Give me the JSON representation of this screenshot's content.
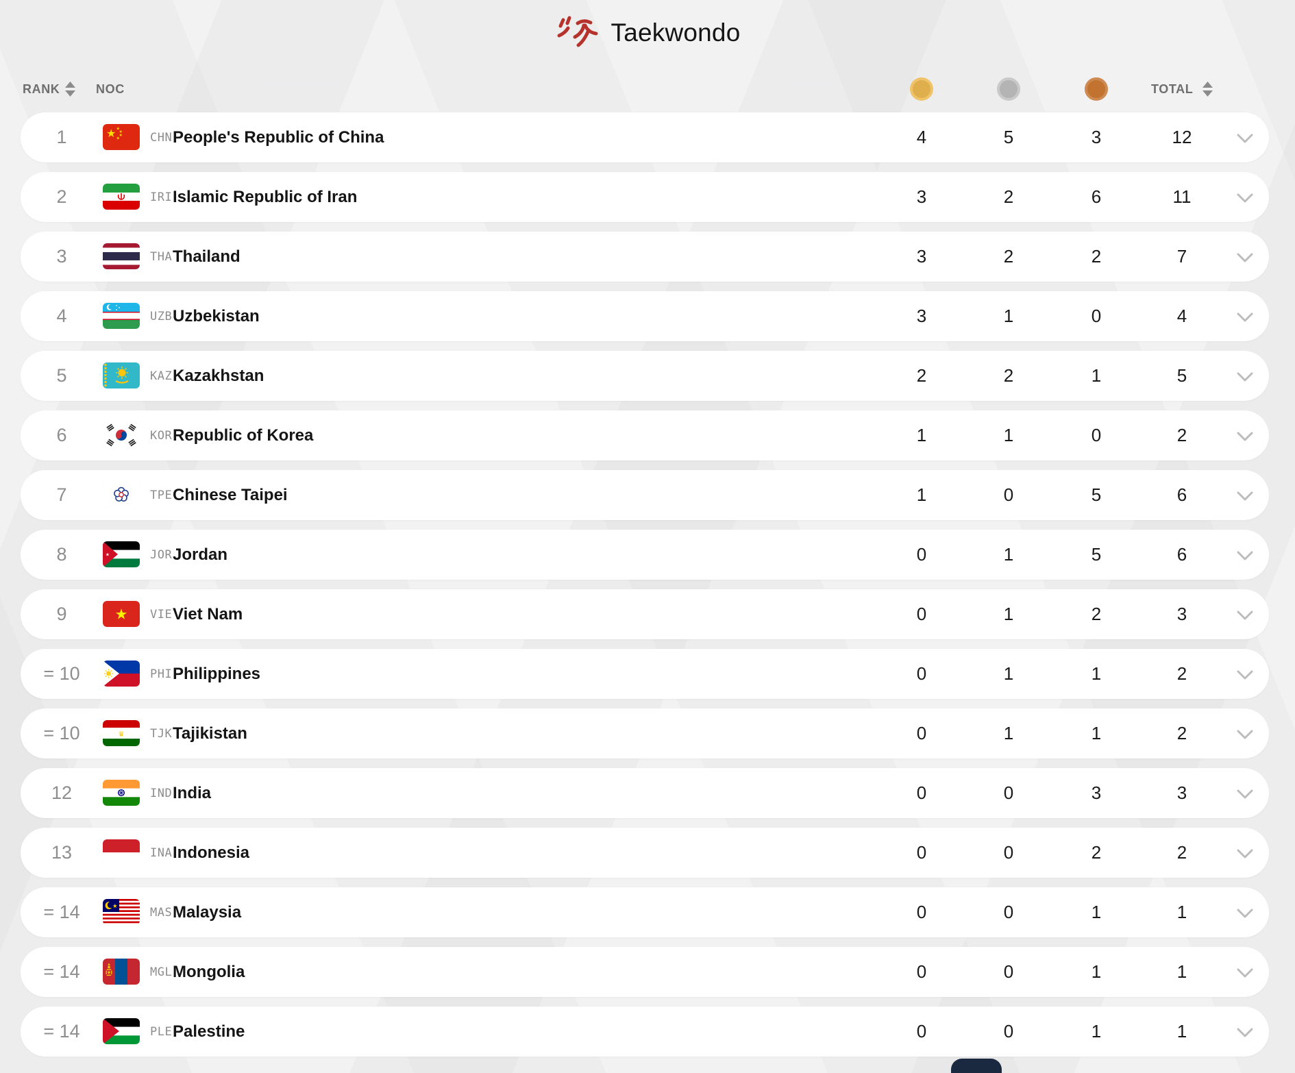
{
  "page": {
    "title": "Taekwondo",
    "accent_color": "#b5332c"
  },
  "table": {
    "headers": {
      "rank": "RANK",
      "noc": "NOC",
      "total": "TOTAL"
    },
    "medal_colors": {
      "gold": "#dfaf4e",
      "gold_ring": "#efc469",
      "silver": "#b4b4b4",
      "silver_ring": "#c9c9c9",
      "bronze": "#c2732f",
      "bronze_ring": "#ce8a50"
    },
    "rows": [
      {
        "rank": "1",
        "noc": "CHN",
        "country": "People's Republic of China",
        "gold": 4,
        "silver": 5,
        "bronze": 3,
        "total": 12
      },
      {
        "rank": "2",
        "noc": "IRI",
        "country": "Islamic Republic of Iran",
        "gold": 3,
        "silver": 2,
        "bronze": 6,
        "total": 11
      },
      {
        "rank": "3",
        "noc": "THA",
        "country": "Thailand",
        "gold": 3,
        "silver": 2,
        "bronze": 2,
        "total": 7
      },
      {
        "rank": "4",
        "noc": "UZB",
        "country": "Uzbekistan",
        "gold": 3,
        "silver": 1,
        "bronze": 0,
        "total": 4
      },
      {
        "rank": "5",
        "noc": "KAZ",
        "country": "Kazakhstan",
        "gold": 2,
        "silver": 2,
        "bronze": 1,
        "total": 5
      },
      {
        "rank": "6",
        "noc": "KOR",
        "country": "Republic of Korea",
        "gold": 1,
        "silver": 1,
        "bronze": 0,
        "total": 2
      },
      {
        "rank": "7",
        "noc": "TPE",
        "country": "Chinese Taipei",
        "gold": 1,
        "silver": 0,
        "bronze": 5,
        "total": 6
      },
      {
        "rank": "8",
        "noc": "JOR",
        "country": "Jordan",
        "gold": 0,
        "silver": 1,
        "bronze": 5,
        "total": 6
      },
      {
        "rank": "9",
        "noc": "VIE",
        "country": "Viet Nam",
        "gold": 0,
        "silver": 1,
        "bronze": 2,
        "total": 3
      },
      {
        "rank": "= 10",
        "noc": "PHI",
        "country": "Philippines",
        "gold": 0,
        "silver": 1,
        "bronze": 1,
        "total": 2
      },
      {
        "rank": "= 10",
        "noc": "TJK",
        "country": "Tajikistan",
        "gold": 0,
        "silver": 1,
        "bronze": 1,
        "total": 2
      },
      {
        "rank": "12",
        "noc": "IND",
        "country": "India",
        "gold": 0,
        "silver": 0,
        "bronze": 3,
        "total": 3
      },
      {
        "rank": "13",
        "noc": "INA",
        "country": "Indonesia",
        "gold": 0,
        "silver": 0,
        "bronze": 2,
        "total": 2
      },
      {
        "rank": "= 14",
        "noc": "MAS",
        "country": "Malaysia",
        "gold": 0,
        "silver": 0,
        "bronze": 1,
        "total": 1
      },
      {
        "rank": "= 14",
        "noc": "MGL",
        "country": "Mongolia",
        "gold": 0,
        "silver": 0,
        "bronze": 1,
        "total": 1
      },
      {
        "rank": "= 14",
        "noc": "PLE",
        "country": "Palestine",
        "gold": 0,
        "silver": 0,
        "bronze": 1,
        "total": 1
      }
    ]
  }
}
